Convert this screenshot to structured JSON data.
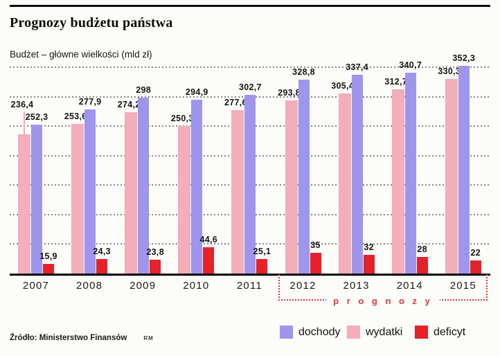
{
  "header": {
    "title": "Prognozy budżetu państwa",
    "subtitle": "Budżet – główne wielkości (mld zł)"
  },
  "chart_data": {
    "type": "bar",
    "title": "Prognozy budżetu państwa",
    "subtitle": "Budżet – główne wielkości (mld zł)",
    "unit": "mld zł",
    "categories": [
      "2007",
      "2008",
      "2009",
      "2010",
      "2011",
      "2012",
      "2013",
      "2014",
      "2015"
    ],
    "series": [
      {
        "name": "wydatki",
        "color": "#f3aeb9",
        "values": [
          236.4,
          253.6,
          274.2,
          250.3,
          277.6,
          293.8,
          305.4,
          312.7,
          330.3
        ],
        "labels": [
          "236,4",
          "253,6",
          "274,2",
          "250,3",
          "277,6",
          "293,8",
          "305,4",
          "312,7",
          "330,3"
        ]
      },
      {
        "name": "dochody",
        "color": "#9d95ee",
        "values": [
          252.3,
          277.9,
          298,
          294.9,
          302.7,
          328.8,
          337.4,
          340.7,
          352.3
        ],
        "labels": [
          "252,3",
          "277,9",
          "298",
          "294,9",
          "302,7",
          "328,8",
          "337,4",
          "340,7",
          "352,3"
        ]
      },
      {
        "name": "deficyt",
        "color": "#e7212a",
        "values": [
          15.9,
          24.3,
          23.8,
          44.6,
          25.1,
          35,
          32,
          28,
          22
        ],
        "labels": [
          "15,9",
          "24,3",
          "23,8",
          "44,6",
          "25,1",
          "35",
          "32",
          "28",
          "22"
        ]
      }
    ],
    "ylim": [
      0,
      350
    ],
    "grid_step": 50,
    "grid": "dotted-horizontal",
    "forecast_categories": [
      "2012",
      "2013",
      "2014",
      "2015"
    ],
    "forecast_label": "prognozy",
    "legend_position": "bottom-right"
  },
  "annotations": {
    "prognozy_label": "p r o g n o z y"
  },
  "legend": [
    {
      "label": "dochody",
      "color": "#9d95ee"
    },
    {
      "label": "wydatki",
      "color": "#f3aeb9"
    },
    {
      "label": "deficyt",
      "color": "#e7212a"
    }
  ],
  "footer": {
    "source": "Źródło: Ministerstwo Finansów",
    "credit": "RM"
  }
}
